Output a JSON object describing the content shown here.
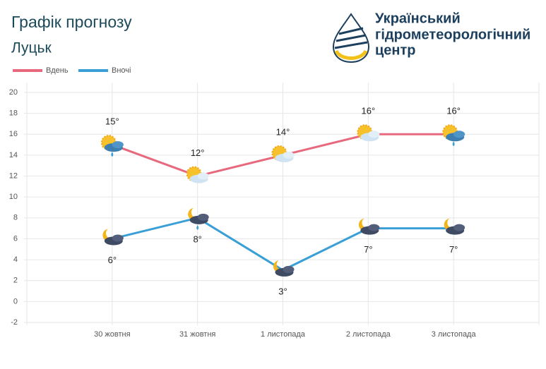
{
  "header": {
    "title": "Графік прогнозу",
    "city": "Луцьк",
    "logo_lines": [
      "Український",
      "гідрометеорологічний",
      "центр"
    ]
  },
  "chart_data": {
    "type": "line",
    "categories": [
      "30 жовтня",
      "31 жовтня",
      "1 листопада",
      "2 листопада",
      "3 листопада"
    ],
    "series": [
      {
        "name": "Вдень",
        "color": "#e8697d",
        "values": [
          15,
          12,
          14,
          16,
          16
        ],
        "value_labels": [
          "15°",
          "12°",
          "14°",
          "16°",
          "16°"
        ]
      },
      {
        "name": "Вночі",
        "color": "#3a9fd6",
        "values": [
          6,
          8,
          3,
          7,
          7
        ],
        "value_labels": [
          "6°",
          "8°",
          "3°",
          "7°",
          "7°"
        ]
      }
    ],
    "ylim": [
      -2,
      20
    ],
    "yticks": [
      -2,
      0,
      2,
      4,
      6,
      8,
      10,
      12,
      14,
      16,
      18,
      20
    ],
    "grid": true
  }
}
